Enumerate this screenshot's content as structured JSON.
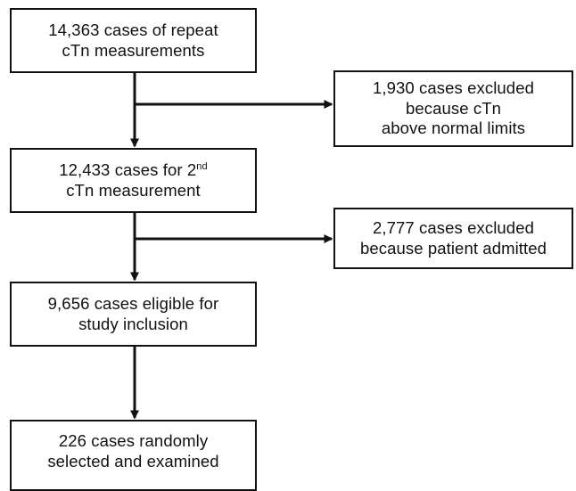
{
  "flowchart": {
    "step1": {
      "line1": "14,363 cases of repeat",
      "line2": "cTn measurements"
    },
    "exclusion1": {
      "line1": "1,930 cases excluded",
      "line2": "because cTn",
      "line3": "above normal limits"
    },
    "step2": {
      "line1_prefix": "12,433 cases for 2",
      "line1_sup": "nd",
      "line2": "cTn measurement"
    },
    "exclusion2": {
      "line1": "2,777 cases excluded",
      "line2": "because patient admitted"
    },
    "step3": {
      "line1": "9,656 cases eligible for",
      "line2": "study inclusion"
    },
    "step4": {
      "line1": "226 cases randomly",
      "line2": "selected and examined"
    }
  },
  "colors": {
    "stroke": "#111111",
    "background": "#ffffff"
  }
}
